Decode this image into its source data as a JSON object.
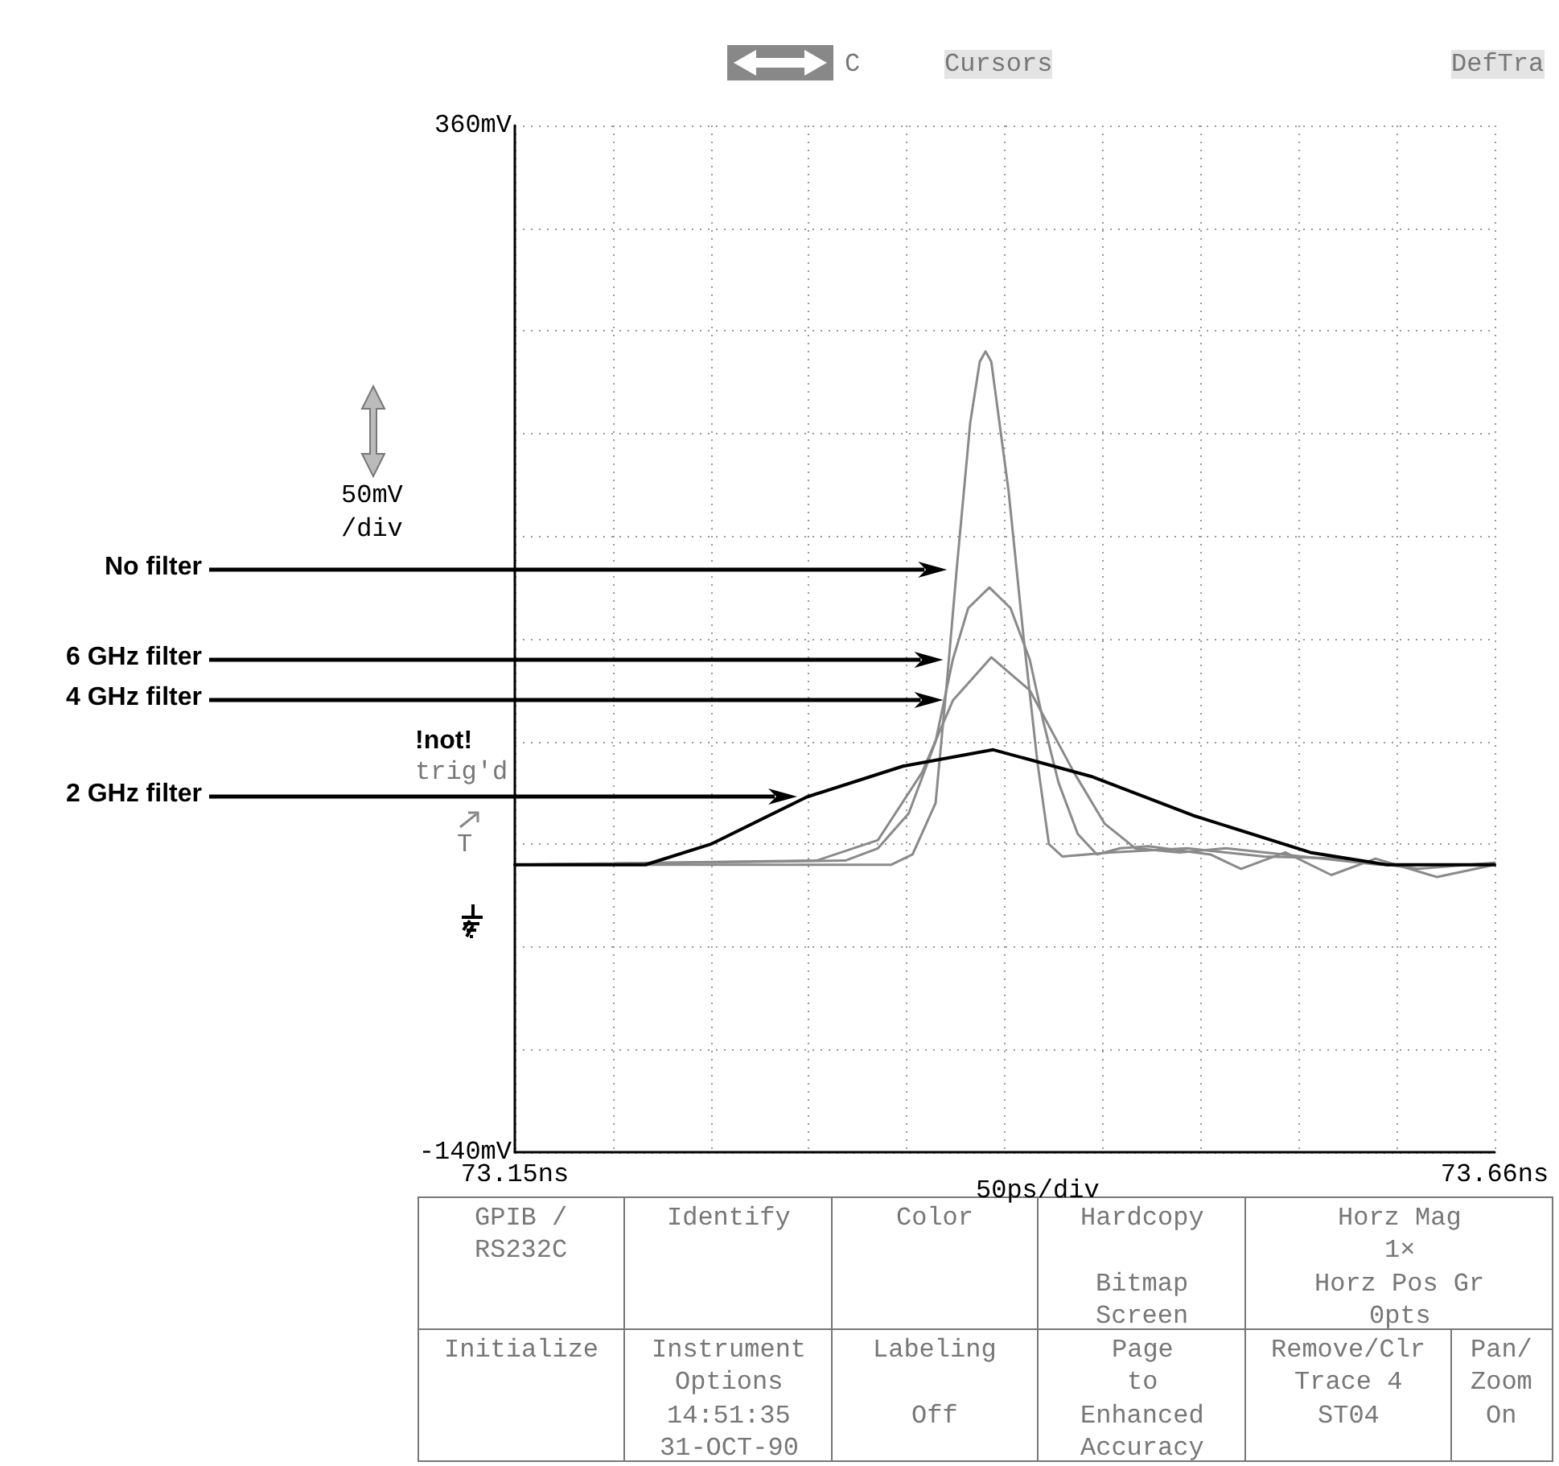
{
  "chart_data": {
    "type": "line",
    "xlim": [
      73.15,
      73.66
    ],
    "ylim": [
      -140,
      360
    ],
    "xticks": [
      {
        "value": 73.15,
        "label": "73.15ns"
      },
      {
        "value": 73.201,
        "label": null
      },
      {
        "value": 73.252,
        "label": null
      },
      {
        "value": 73.303,
        "label": null
      },
      {
        "value": 73.354,
        "label": null
      },
      {
        "value": 73.405,
        "label": null
      },
      {
        "value": 73.456,
        "label": null
      },
      {
        "value": 73.507,
        "label": null
      },
      {
        "value": 73.558,
        "label": null
      },
      {
        "value": 73.609,
        "label": null
      },
      {
        "value": 73.66,
        "label": "73.66ns"
      }
    ],
    "yticks": [
      {
        "value": -140,
        "label": "-140mV"
      },
      {
        "value": -90,
        "label": null
      },
      {
        "value": -40,
        "label": null
      },
      {
        "value": 10,
        "label": null
      },
      {
        "value": 60,
        "label": null
      },
      {
        "value": 110,
        "label": null
      },
      {
        "value": 160,
        "label": null
      },
      {
        "value": 210,
        "label": null
      },
      {
        "value": 260,
        "label": null
      },
      {
        "value": 310,
        "label": null
      },
      {
        "value": 360,
        "label": "360mV"
      }
    ],
    "grid": true,
    "line_style": "solid",
    "marker": "none",
    "series": [
      {
        "name": "No filter",
        "color": "#8a8a8a",
        "x": [
          73.15,
          73.346,
          73.357,
          73.369,
          73.375,
          73.38,
          73.387,
          73.392,
          73.395,
          73.398,
          73.403,
          73.407,
          73.415,
          73.422,
          73.428,
          73.435,
          73.46,
          73.5,
          73.54,
          73.58,
          73.62,
          73.66
        ],
        "values": [
          0,
          0,
          5,
          30,
          90,
          144,
          215,
          245,
          250,
          245,
          210,
          182,
          109,
          50,
          10,
          4,
          6,
          8,
          4,
          3,
          -2,
          1
        ]
      },
      {
        "name": "6 GHz filter",
        "color": "#8a8a8a",
        "x": [
          73.15,
          73.322,
          73.339,
          73.355,
          73.369,
          73.378,
          73.386,
          73.397,
          73.408,
          73.418,
          73.425,
          73.433,
          73.443,
          73.453,
          73.465,
          73.48,
          73.512,
          73.528,
          73.551,
          73.575,
          73.598,
          73.63,
          73.66
        ],
        "values": [
          0,
          2,
          8,
          25,
          60,
          100,
          125,
          135,
          125,
          100,
          70,
          40,
          15,
          5,
          8,
          9,
          5,
          -2,
          6,
          -5,
          3,
          -6,
          0
        ]
      },
      {
        "name": "4 GHz filter",
        "color": "#8a8a8a",
        "x": [
          73.15,
          73.307,
          73.339,
          73.362,
          73.378,
          73.398,
          73.418,
          73.441,
          73.457,
          73.473,
          73.496,
          73.52,
          73.56,
          73.6,
          73.66
        ],
        "values": [
          0,
          2,
          12,
          45,
          80,
          101,
          85,
          45,
          20,
          8,
          6,
          8,
          4,
          0,
          0
        ]
      },
      {
        "name": "2 GHz filter",
        "color": "#000000",
        "x": [
          73.15,
          73.218,
          73.252,
          73.302,
          73.352,
          73.399,
          73.45,
          73.503,
          73.564,
          73.604,
          73.66
        ],
        "values": [
          0,
          0,
          10,
          33,
          48,
          56,
          43,
          24,
          6,
          0,
          0
        ]
      }
    ],
    "annotations": [
      "50mV\n/div",
      "!not!",
      "trig'd",
      "T",
      "50ps/div",
      "C",
      "Cursors",
      "DefTra",
      "GPIB /",
      "RS232C",
      "Identify",
      "Color",
      "Hardcopy",
      "Bitmap",
      "Screen",
      "Horz Mag",
      "1×",
      "Horz Pos Gr",
      "0pts",
      "Initialize",
      "Instrument",
      "Options",
      "14:51:35",
      "31-OCT-90",
      "Labeling",
      "Off",
      "Page",
      "to",
      "Enhanced",
      "Accuracy",
      "Remove/Clr",
      "Trace 4",
      "ST04",
      "Pan/",
      "Zoom",
      "On"
    ]
  }
}
